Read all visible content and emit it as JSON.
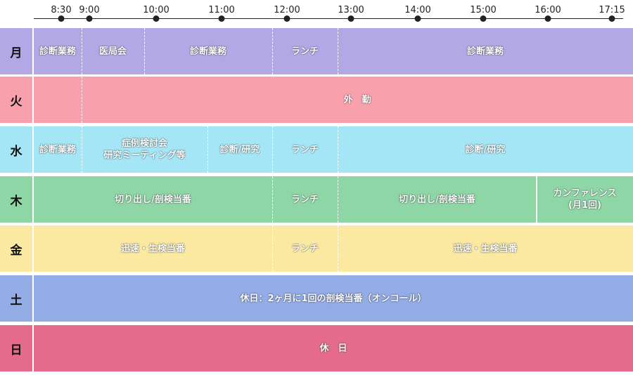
{
  "timeline": {
    "times": [
      "8:30",
      "9:00",
      "10:00",
      "11:00",
      "12:00",
      "13:00",
      "14:00",
      "15:00",
      "16:00",
      "17:15"
    ]
  },
  "days": [
    {
      "label": "月",
      "color": "#b3a8e6",
      "blocks": [
        {
          "text": "診断業務",
          "start": 0,
          "end": 1
        },
        {
          "text": "医局会",
          "start": 1,
          "end": 2
        },
        {
          "text": "診断業務",
          "start": 2,
          "end": 4
        },
        {
          "text": "ランチ",
          "start": 4,
          "end": 5
        },
        {
          "text": "診断業務",
          "start": 5,
          "end": 9
        }
      ]
    },
    {
      "label": "火",
      "color": "#f8a1ad",
      "blocks": [
        {
          "text": "",
          "start": 0,
          "end": 1
        },
        {
          "text": "外　勤",
          "start": 1,
          "end": 9
        }
      ]
    },
    {
      "label": "水",
      "color": "#a4e6f6",
      "blocks": [
        {
          "text": "診断業務",
          "start": 0,
          "end": 1
        },
        {
          "text": "症例検討会\n研究ミーティング等",
          "start": 1,
          "end": 3
        },
        {
          "text": "診断/研究",
          "start": 3,
          "end": 4
        },
        {
          "text": "ランチ",
          "start": 4,
          "end": 5
        },
        {
          "text": "診断/研究",
          "start": 5,
          "end": 9
        }
      ]
    },
    {
      "label": "木",
      "color": "#8fd6a6",
      "blocks": [
        {
          "text": "切り出し/剖検当番",
          "start": 0,
          "end": 4
        },
        {
          "text": "ランチ",
          "start": 4,
          "end": 5
        },
        {
          "text": "切り出し/剖検当番",
          "start": 5,
          "end": 8
        },
        {
          "text": "カンファレンス\n(月1回)",
          "start": 8,
          "end": 9,
          "solid": true
        }
      ]
    },
    {
      "label": "金",
      "color": "#fbe9a1",
      "blocks": [
        {
          "text": "迅速・生検当番",
          "start": 0,
          "end": 4
        },
        {
          "text": "ランチ",
          "start": 4,
          "end": 5
        },
        {
          "text": "迅速・生検当番",
          "start": 5,
          "end": 9
        }
      ]
    },
    {
      "label": "土",
      "color": "#93ace6",
      "blocks": [
        {
          "text": "休日：2ヶ月に1回の剖検当番（オンコール）",
          "start": 0,
          "end": 9
        }
      ]
    },
    {
      "label": "日",
      "color": "#e56b8c",
      "blocks": [
        {
          "text": "休　日",
          "start": 0,
          "end": 9
        }
      ]
    }
  ]
}
